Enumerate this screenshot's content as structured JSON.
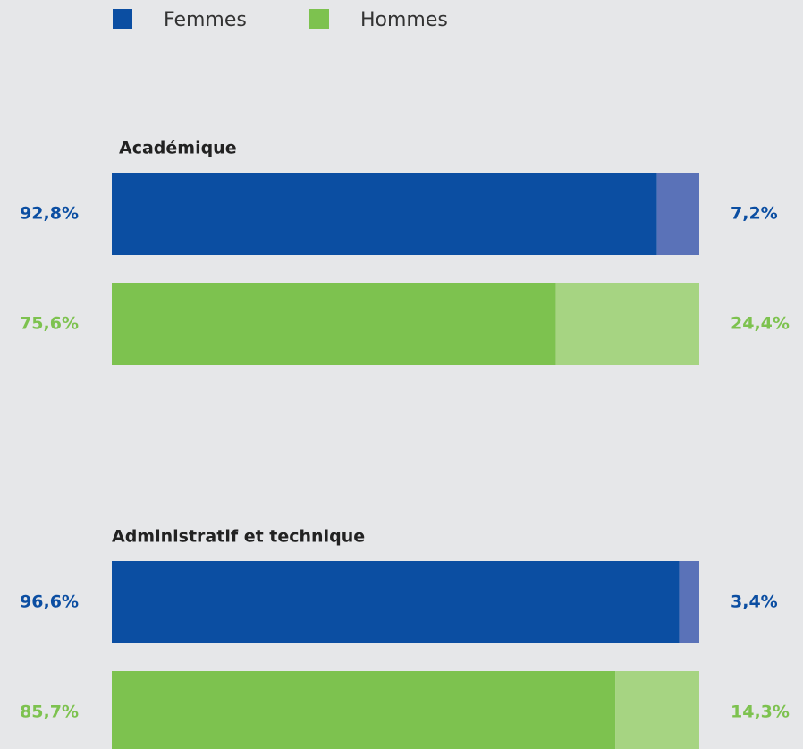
{
  "chart_data": {
    "type": "stacked-bar",
    "xlim": [
      0,
      100
    ],
    "series": [
      {
        "name": "Femmes",
        "color": "#0b4ea2",
        "light_color": "#5a72b8"
      },
      {
        "name": "Hommes",
        "color": "#7dc24f",
        "light_color": "#a6d482"
      }
    ],
    "groups": [
      {
        "title": "Académique",
        "values": [
          [
            92.8,
            7.2
          ],
          [
            75.6,
            24.4
          ]
        ],
        "value_labels": [
          [
            "92,8%",
            "7,2%"
          ],
          [
            "75,6%",
            "24,4%"
          ]
        ]
      },
      {
        "title": "Administratif et technique",
        "values": [
          [
            96.6,
            3.4
          ],
          [
            85.7,
            14.3
          ]
        ],
        "value_labels": [
          [
            "96,6%",
            "3,4%"
          ],
          [
            "85,7%",
            "14,3%"
          ]
        ]
      }
    ]
  }
}
